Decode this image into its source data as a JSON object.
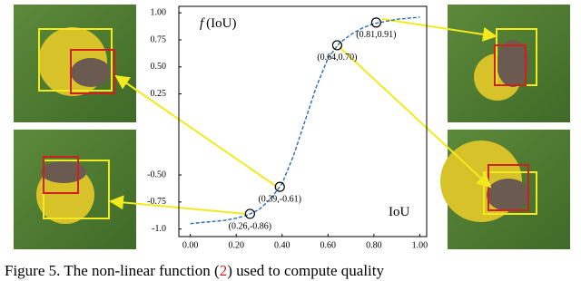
{
  "chart_data": {
    "type": "line",
    "ylabel_symbol": "f",
    "ylabel": "(IoU)",
    "xlabel": "IoU",
    "xlim": [
      -0.05,
      1.03
    ],
    "ylim": [
      -1.07,
      1.06
    ],
    "xticks": [
      {
        "value": 0,
        "label": "0.00"
      },
      {
        "value": 0.2,
        "label": "0.20"
      },
      {
        "value": 0.4,
        "label": "0.40"
      },
      {
        "value": 0.6,
        "label": "0.60"
      },
      {
        "value": 0.8,
        "label": "0.80"
      },
      {
        "value": 1,
        "label": "1.00"
      }
    ],
    "yticks": [
      {
        "value": 1,
        "label": "1.00"
      },
      {
        "value": 0.75,
        "label": "0.75"
      },
      {
        "value": 0.5,
        "label": "0.50"
      },
      {
        "value": 0.25,
        "label": "0.25"
      },
      {
        "value": -0.5,
        "label": "-0.50"
      },
      {
        "value": -0.75,
        "label": "-0.75"
      },
      {
        "value": -1,
        "label": "-1.0"
      }
    ],
    "grid": false,
    "series": [
      {
        "color": "#2b6cb8",
        "style": "dashed",
        "x": [
          0,
          0.05,
          0.1,
          0.15,
          0.2,
          0.25,
          0.3,
          0.35,
          0.4,
          0.45,
          0.5,
          0.55,
          0.6,
          0.65,
          0.7,
          0.75,
          0.8,
          0.85,
          0.9,
          0.95,
          1
        ],
        "values": [
          -0.95,
          -0.94,
          -0.93,
          -0.92,
          -0.9,
          -0.87,
          -0.82,
          -0.72,
          -0.58,
          -0.32,
          0,
          0.32,
          0.58,
          0.72,
          0.8,
          0.86,
          0.9,
          0.92,
          0.94,
          0.95,
          0.96
        ]
      },
      {
        "color": "#000000",
        "marker": "circle",
        "x": [
          0.26,
          0.39,
          0.64,
          0.81
        ],
        "values": [
          -0.86,
          -0.61,
          0.7,
          0.91
        ],
        "value_labels": [
          "(0.26,-0.86)",
          "(0.39,-0.61)",
          "(0.64,0.70)",
          "(0.81,0.91)"
        ]
      }
    ]
  },
  "caption": {
    "prefix": "Figure 5. The non-linear function (",
    "ref": "2",
    "suffix": ") used to compute quality"
  }
}
